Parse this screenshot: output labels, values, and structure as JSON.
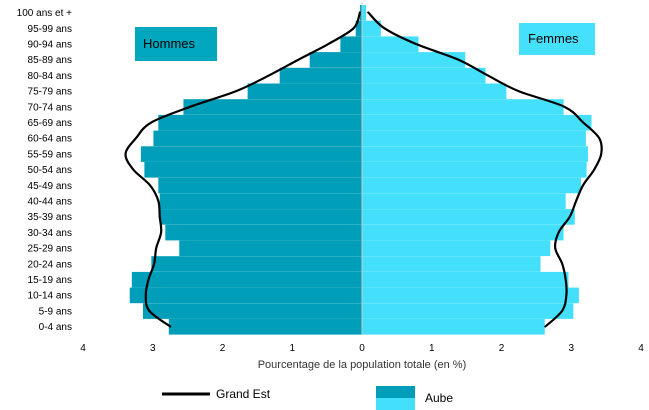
{
  "chart_data": {
    "type": "bar",
    "orientation": "horizontal-pyramid",
    "xlabel": "Pourcentage de la population totale (en %)",
    "xlim": [
      -4,
      4
    ],
    "x_ticks": [
      {
        "value": -4,
        "label": "4"
      },
      {
        "value": -3,
        "label": "3"
      },
      {
        "value": -2,
        "label": "2"
      },
      {
        "value": -1,
        "label": "1"
      },
      {
        "value": 0,
        "label": "0"
      },
      {
        "value": 1,
        "label": "1"
      },
      {
        "value": 2,
        "label": "2"
      },
      {
        "value": 3,
        "label": "3"
      },
      {
        "value": 4,
        "label": "4"
      }
    ],
    "categories": [
      "0-4 ans",
      "5-9 ans",
      "10-14 ans",
      "15-19 ans",
      "20-24 ans",
      "25-29 ans",
      "30-34 ans",
      "35-39 ans",
      "40-44 ans",
      "45-49 ans",
      "50-54 ans",
      "55-59 ans",
      "60-64 ans",
      "65-69 ans",
      "70-74 ans",
      "75-79 ans",
      "80-84 ans",
      "85-89 ans",
      "90-94 ans",
      "95-99 ans",
      "100 ans et +"
    ],
    "panel_labels": {
      "left": "Hommes",
      "right": "Femmes"
    },
    "colors": {
      "hommes": "#009eb8",
      "femmes": "#44e0fb",
      "line": "#000000",
      "panel_left_bg": "#00a7bf",
      "panel_right_bg": "#45e0fc",
      "axis": "#c8c8c8"
    },
    "series": [
      {
        "name": "Aube",
        "role": "bars",
        "hommes": [
          2.77,
          3.14,
          3.33,
          3.3,
          3.02,
          2.62,
          2.82,
          2.9,
          2.9,
          2.92,
          3.12,
          3.17,
          2.99,
          2.92,
          2.56,
          1.64,
          1.18,
          0.75,
          0.31,
          0.09,
          0.03
        ],
        "femmes": [
          2.62,
          3.03,
          3.11,
          2.96,
          2.56,
          2.7,
          2.89,
          3.05,
          2.92,
          3.14,
          3.22,
          3.24,
          3.21,
          3.29,
          2.89,
          2.07,
          1.77,
          1.48,
          0.81,
          0.27,
          0.06
        ]
      },
      {
        "name": "Grand Est",
        "role": "line",
        "hommes": [
          2.75,
          3.05,
          3.1,
          3.06,
          2.98,
          2.95,
          2.88,
          2.9,
          2.92,
          3.04,
          3.28,
          3.39,
          3.24,
          3.02,
          2.46,
          1.8,
          1.33,
          0.91,
          0.48,
          0.12,
          0.03
        ],
        "femmes": [
          2.63,
          2.87,
          2.93,
          2.92,
          2.87,
          2.77,
          2.82,
          2.98,
          3.07,
          3.17,
          3.33,
          3.43,
          3.4,
          3.17,
          2.9,
          2.24,
          1.8,
          1.38,
          0.77,
          0.32,
          0.09
        ]
      }
    ],
    "legend": [
      {
        "label": "Grand Est",
        "symbol": "line"
      },
      {
        "label": "Aube",
        "symbol": "bars"
      }
    ],
    "legend_position": "bottom"
  }
}
